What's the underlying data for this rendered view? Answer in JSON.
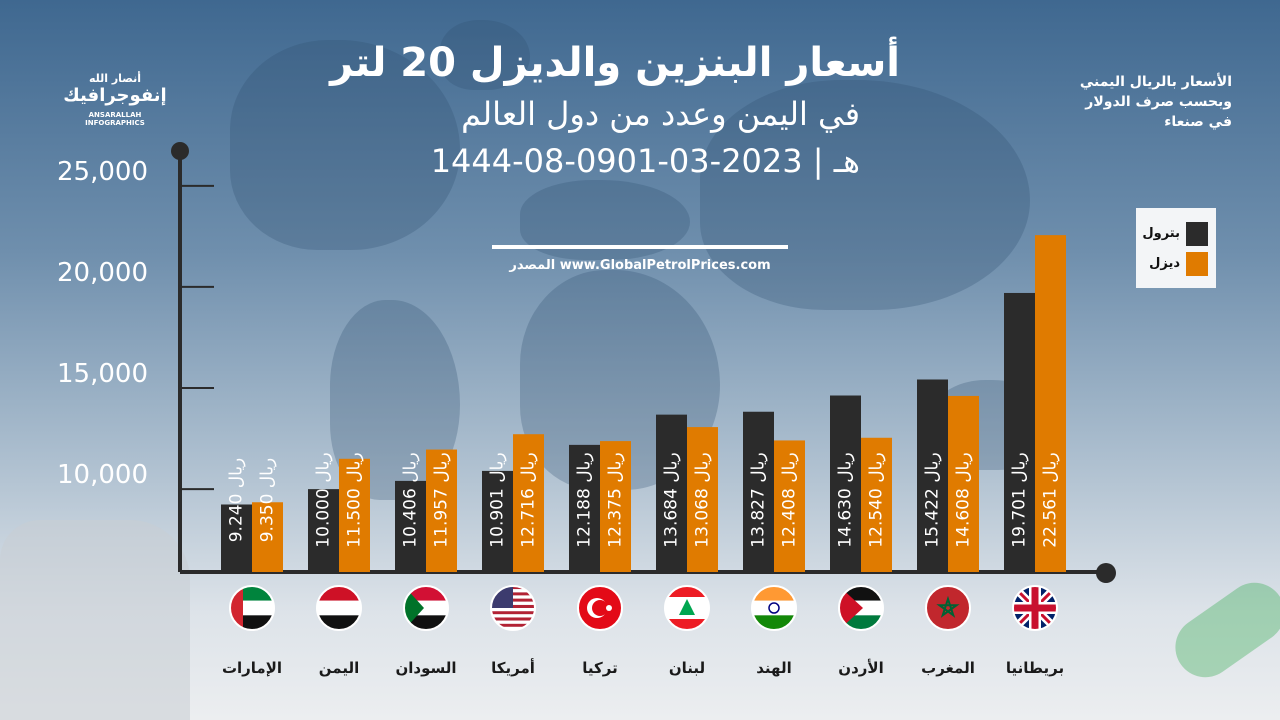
{
  "brand": {
    "line1": "أنصار الله",
    "line2": "إنفوجرافيك",
    "line3": "ANSARALLAH INFOGRAPHICS"
  },
  "header": {
    "title": "أسعار البنزين والديزل 20 لتر",
    "subtitle": "في اليمن وعدد من دول العالم",
    "date": "1444-08-09هـ | 2023-03-01",
    "source": "المصدر www.GlobalPetrolPrices.com"
  },
  "note": {
    "line1": "الأسعار بالريال اليمني",
    "line2": "وبحسب صرف الدولار",
    "line3": "في صنعاء"
  },
  "legend": {
    "petrol": "بترول",
    "diesel": "ديزل"
  },
  "colors": {
    "petrol": "#2b2b2b",
    "diesel": "#e07b00",
    "axis": "#2b2b2b"
  },
  "icons": {
    "pump": "fuel-pump-icon",
    "nozzle": "fuel-nozzle-icon"
  },
  "chart_data": {
    "type": "bar",
    "title": "أسعار البنزين والديزل 20 لتر",
    "ylim": [
      0,
      25000
    ],
    "yticks": [
      "10,000",
      "15,000",
      "20,000",
      "25,000"
    ],
    "ytick_values": [
      10000,
      15000,
      20000,
      25000
    ],
    "grid": false,
    "legend_position": "top-right",
    "unit": "ريال",
    "categories": [
      "الإمارات",
      "اليمن",
      "السودان",
      "أمريكا",
      "تركيا",
      "لبنان",
      "الهند",
      "الأردن",
      "المغرب",
      "بريطانيا"
    ],
    "flags": [
      "uae",
      "yemen",
      "sudan",
      "usa",
      "turkey",
      "lebanon",
      "india",
      "jordan",
      "morocco",
      "uk"
    ],
    "series": [
      {
        "name": "بترول",
        "values": [
          9240,
          10000,
          10406,
          10901,
          12188,
          13684,
          13827,
          14630,
          15422,
          19701
        ],
        "labels": [
          "9.240",
          "10.000",
          "10.406",
          "10.901",
          "12.188",
          "13.684",
          "13.827",
          "14.630",
          "15.422",
          "19.701"
        ]
      },
      {
        "name": "ديزل",
        "values": [
          9350,
          11500,
          11957,
          12716,
          12375,
          13068,
          12408,
          12540,
          14608,
          22561
        ],
        "labels": [
          "9.350",
          "11.500",
          "11.957",
          "12.716",
          "12.375",
          "13.068",
          "12.408",
          "12.540",
          "14.608",
          "22.561"
        ]
      }
    ]
  }
}
